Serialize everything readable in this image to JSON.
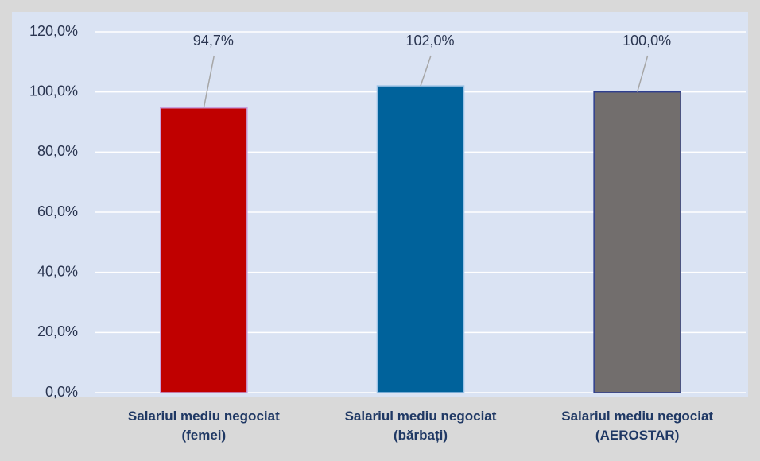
{
  "chart_data": {
    "type": "bar",
    "categories": [
      "Salariul mediu negociat (femei)",
      "Salariul mediu negociat (bărbați)",
      "Salariul mediu negociat (AEROSTAR)"
    ],
    "values": [
      94.7,
      102,
      100
    ],
    "value_labels": [
      "94,7%",
      "102,0%",
      "100,0%"
    ],
    "colors": [
      "#c00000",
      "#00629b",
      "#726e6d"
    ],
    "ylim": [
      0,
      120
    ],
    "yticks": [
      {
        "value": 0,
        "label": "0,0%"
      },
      {
        "value": 20,
        "label": "20,0%"
      },
      {
        "value": 40,
        "label": "40,0%"
      },
      {
        "value": 60,
        "label": "60,0%"
      },
      {
        "value": 80,
        "label": "80,0%"
      },
      {
        "value": 100,
        "label": "100,0%"
      },
      {
        "value": 120,
        "label": "120,0%"
      }
    ],
    "grid": true
  }
}
